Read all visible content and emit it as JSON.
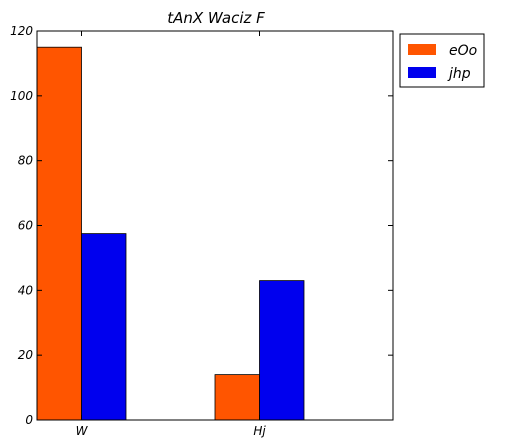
{
  "chart_data": {
    "type": "bar",
    "title": "tAnX Waciz F",
    "categories": [
      "W",
      "Hj"
    ],
    "series": [
      {
        "name": "eOo",
        "color": "#ff5500",
        "values": [
          115,
          14
        ]
      },
      {
        "name": "jhp",
        "color": "#0000ee",
        "values": [
          57.5,
          43
        ]
      }
    ],
    "ylim": [
      0,
      120
    ],
    "yticks": [
      0,
      20,
      40,
      60,
      80,
      100,
      120
    ],
    "grid": false,
    "legend_position": "outside-top-right"
  }
}
